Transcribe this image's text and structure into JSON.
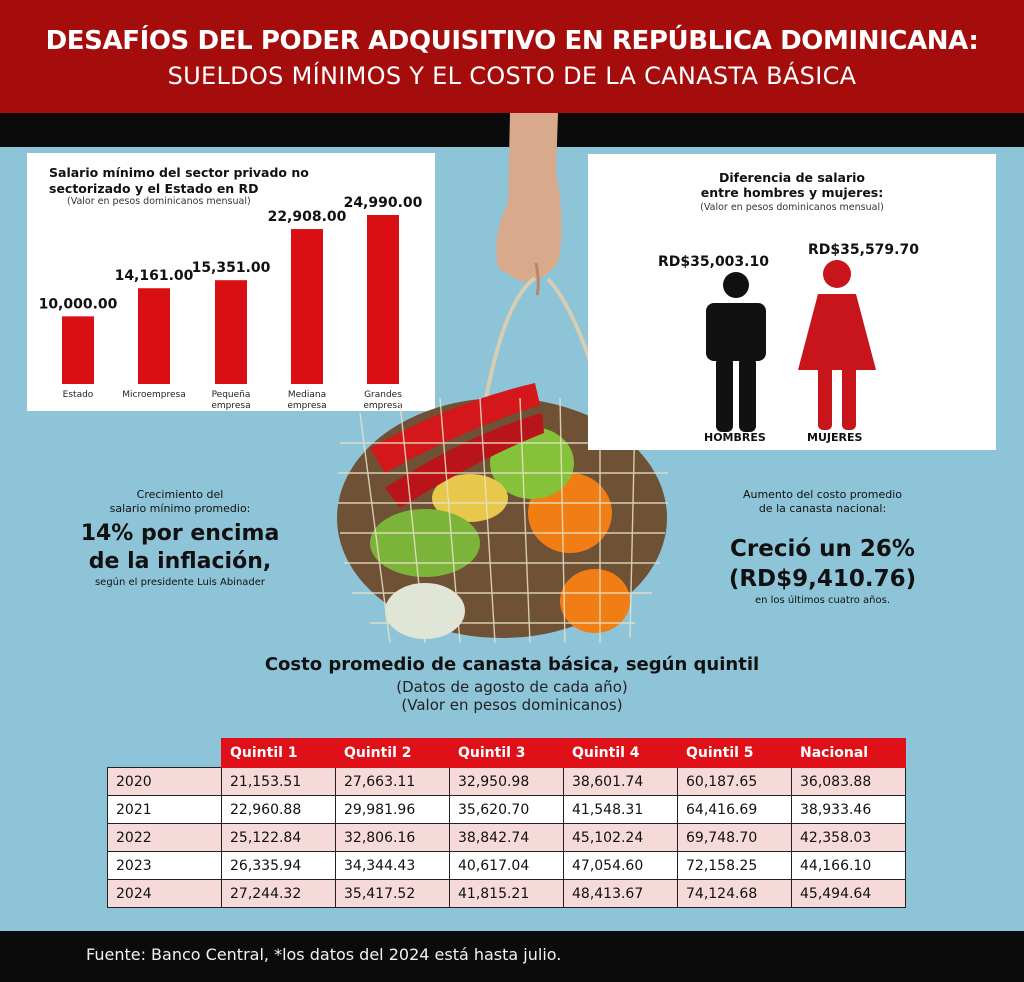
{
  "header": {
    "title": "DESAFÍOS DEL PODER ADQUISITIVO EN REPÚBLICA DOMINICANA:",
    "subtitle": "SUELDOS MÍNIMOS Y EL COSTO DE LA CANASTA BÁSICA"
  },
  "gender": {
    "title_line1": "Diferencia de salario",
    "title_line2": "entre hombres y mujeres:",
    "note": "(Valor en pesos dominicanos mensual)",
    "men_value": "RD$35,003.10",
    "women_value": "RD$35,579.70",
    "men_label": "HOMBRES",
    "women_label": "MUJERES",
    "men_color": "#111111",
    "women_color": "#c8141b"
  },
  "callouts": {
    "growth_line1": "Crecimiento del",
    "growth_line2": "salario mínimo promedio:",
    "growth_big1": "14% por encima",
    "growth_big2": "de la inflación,",
    "growth_source": "según el presidente Luis Abinader",
    "basket_line1": "Aumento del costo promedio",
    "basket_line2": "de la canasta nacional:",
    "basket_big1": "Creció un 26%",
    "basket_big2": "(RD$9,410.76)",
    "basket_tail": "en los últimos cuatro años."
  },
  "footer": {
    "source": "Fuente: Banco Central, *los datos del 2024 está hasta julio."
  },
  "chart_data": [
    {
      "type": "bar",
      "title": "Salario mínimo del sector privado no sectorizado y el Estado en RD",
      "subtitle": "(Valor en pesos dominicanos mensual)",
      "categories": [
        "Estado",
        "Microempresa",
        "Pequeña empresa",
        "Mediana empresa",
        "Grandes empresa"
      ],
      "values": [
        10000.0,
        14161.0,
        15351.0,
        22908.0,
        24990.0
      ],
      "value_labels": [
        "10,000.00",
        "14,161.00",
        "15,351.00",
        "22,908.00",
        "24,990.00"
      ],
      "ylim": [
        0,
        24990
      ],
      "color": "#d90f13"
    },
    {
      "type": "table",
      "title": "Costo promedio de canasta básica, según quintil",
      "subtitle1": "(Datos de agosto de cada año)",
      "subtitle2": "(Valor en pesos dominicanos)",
      "columns": [
        "Quintil 1",
        "Quintil 2",
        "Quintil 3",
        "Quintil 4",
        "Quintil 5",
        "Nacional"
      ],
      "rows": [
        [
          "2020",
          "21,153.51",
          "27,663.11",
          "32,950.98",
          "38,601.74",
          "60,187.65",
          "36,083.88"
        ],
        [
          "2021",
          "22,960.88",
          "29,981.96",
          "35,620.70",
          "41,548.31",
          "64,416.69",
          "38,933.46"
        ],
        [
          "2022",
          "25,122.84",
          "32,806.16",
          "38,842.74",
          "45,102.24",
          "69,748.70",
          "42,358.03"
        ],
        [
          "2023",
          "26,335.94",
          "34,344.43",
          "40,617.04",
          "47,054.60",
          "72,158.25",
          "44,166.10"
        ],
        [
          "2024",
          "27,244.32",
          "35,417.52",
          "41,815.21",
          "48,413.67",
          "74,124.68",
          "45,494.64"
        ]
      ]
    }
  ]
}
